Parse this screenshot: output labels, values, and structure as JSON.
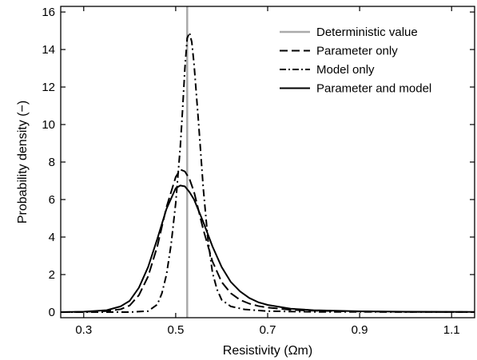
{
  "chart_data": {
    "type": "line",
    "xlabel": "Resistivity (Ωm)",
    "ylabel": "Probability density (−)",
    "xlim": [
      0.25,
      1.15
    ],
    "ylim": [
      -0.3,
      16.3
    ],
    "xticks": [
      0.3,
      0.5,
      0.7,
      0.9,
      1.1
    ],
    "xtick_labels": [
      "0.3",
      "0.5",
      "0.7",
      "0.9",
      "1.1"
    ],
    "yticks": [
      0,
      2,
      4,
      6,
      8,
      10,
      12,
      14,
      16
    ],
    "ytick_labels": [
      "0",
      "2",
      "4",
      "6",
      "8",
      "10",
      "12",
      "14",
      "16"
    ],
    "grid": false,
    "legend_position": "top-right",
    "deterministic_value": 0.525,
    "series": [
      {
        "name": "Deterministic value",
        "style": "solid",
        "color": "#aaaaaa",
        "x": [
          0.525,
          0.525
        ],
        "y": [
          -0.3,
          16.3
        ]
      },
      {
        "name": "Parameter only",
        "style": "dashed",
        "color": "#000000",
        "x": [
          0.25,
          0.3,
          0.35,
          0.38,
          0.4,
          0.42,
          0.44,
          0.46,
          0.48,
          0.5,
          0.51,
          0.52,
          0.53,
          0.54,
          0.56,
          0.58,
          0.6,
          0.62,
          0.64,
          0.66,
          0.68,
          0.7,
          0.75,
          0.8,
          0.9,
          1.0,
          1.15
        ],
        "y": [
          0.0,
          0.01,
          0.05,
          0.15,
          0.35,
          0.9,
          1.9,
          3.5,
          5.6,
          7.2,
          7.6,
          7.5,
          7.1,
          6.4,
          4.4,
          2.7,
          1.6,
          1.0,
          0.65,
          0.45,
          0.32,
          0.24,
          0.12,
          0.07,
          0.03,
          0.01,
          0.0
        ]
      },
      {
        "name": "Model only",
        "style": "dashdot",
        "color": "#000000",
        "x": [
          0.25,
          0.4,
          0.44,
          0.46,
          0.47,
          0.48,
          0.49,
          0.5,
          0.51,
          0.515,
          0.52,
          0.525,
          0.53,
          0.535,
          0.54,
          0.55,
          0.56,
          0.57,
          0.58,
          0.59,
          0.6,
          0.62,
          0.65,
          0.7,
          0.8,
          1.15
        ],
        "y": [
          0.0,
          0.0,
          0.05,
          0.4,
          1.0,
          2.0,
          3.6,
          5.8,
          8.8,
          10.8,
          13.0,
          14.6,
          14.9,
          14.4,
          13.2,
          10.0,
          6.6,
          3.9,
          2.1,
          1.2,
          0.65,
          0.3,
          0.14,
          0.05,
          0.01,
          0.0
        ]
      },
      {
        "name": "Parameter and model",
        "style": "solid",
        "color": "#000000",
        "x": [
          0.25,
          0.3,
          0.35,
          0.38,
          0.4,
          0.42,
          0.44,
          0.46,
          0.48,
          0.5,
          0.51,
          0.52,
          0.53,
          0.54,
          0.56,
          0.58,
          0.6,
          0.62,
          0.64,
          0.66,
          0.68,
          0.7,
          0.75,
          0.8,
          0.9,
          1.0,
          1.15
        ],
        "y": [
          0.0,
          0.02,
          0.1,
          0.3,
          0.6,
          1.3,
          2.4,
          3.9,
          5.5,
          6.6,
          6.75,
          6.7,
          6.4,
          6.0,
          4.8,
          3.5,
          2.4,
          1.6,
          1.1,
          0.75,
          0.52,
          0.38,
          0.18,
          0.1,
          0.04,
          0.02,
          0.01
        ]
      }
    ]
  }
}
